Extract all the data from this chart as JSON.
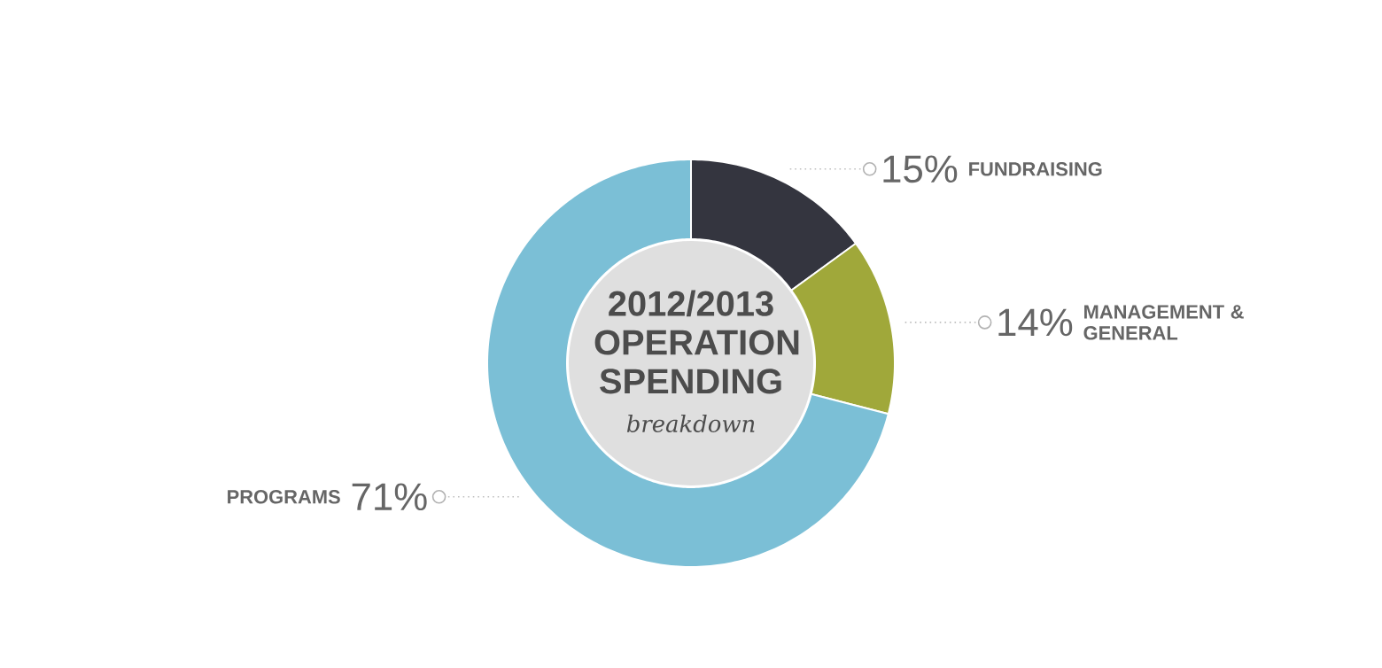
{
  "chart_data": {
    "type": "donut",
    "title": "2012/2013 OPERATION SPENDING",
    "subtitle": "breakdown",
    "categories": [
      "FUNDRAISING",
      "MANAGEMENT & GENERAL",
      "PROGRAMS"
    ],
    "values": [
      15,
      14,
      71
    ],
    "value_labels": [
      "15%",
      "14%",
      "71%"
    ],
    "colors": [
      "#34353f",
      "#a0a83a",
      "#7bbfd6"
    ]
  }
}
